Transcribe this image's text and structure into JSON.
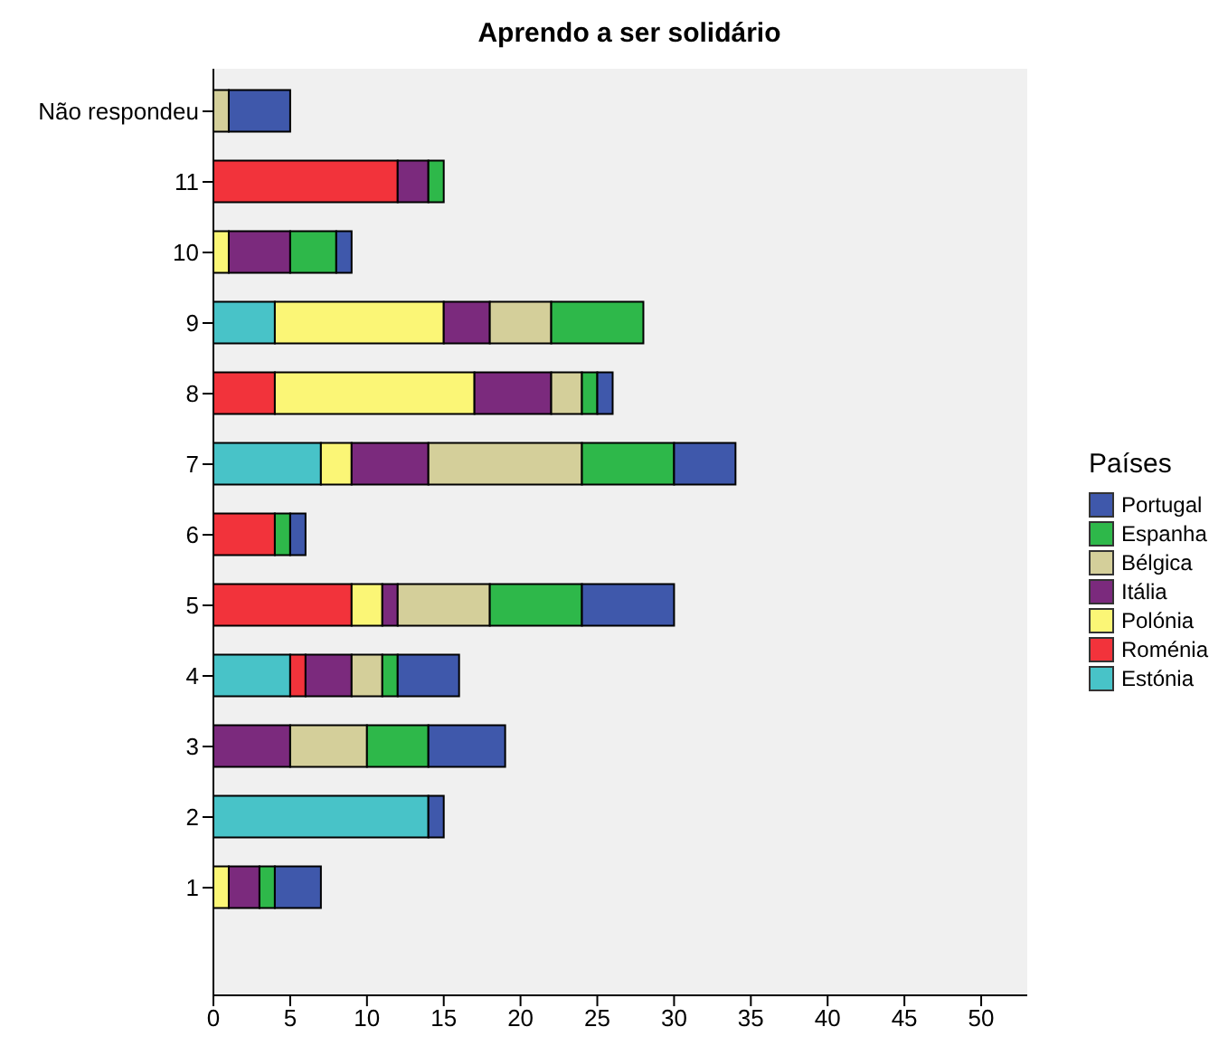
{
  "chart_data": {
    "type": "bar",
    "orientation": "horizontal",
    "stacked": true,
    "title": "Aprendo a ser solidário",
    "legend_title": "Países",
    "legend": "right",
    "grid": false,
    "categories": [
      "Não respondeu",
      "11",
      "10",
      "9",
      "8",
      "7",
      "6",
      "5",
      "4",
      "3",
      "2",
      "1"
    ],
    "xlim": [
      0,
      53
    ],
    "xticks": [
      0,
      5,
      10,
      15,
      20,
      25,
      30,
      35,
      40,
      45,
      50
    ],
    "series": [
      {
        "name": "Estónia",
        "color": "#48c3c8",
        "values": [
          0,
          0,
          0,
          4,
          0,
          7,
          0,
          0,
          5,
          0,
          14,
          0
        ]
      },
      {
        "name": "Roménia",
        "color": "#f2333b",
        "values": [
          0,
          12,
          0,
          0,
          4,
          0,
          4,
          9,
          1,
          0,
          0,
          0
        ]
      },
      {
        "name": "Polónia",
        "color": "#fbf676",
        "values": [
          0,
          0,
          1,
          11,
          13,
          2,
          0,
          2,
          0,
          0,
          0,
          1
        ]
      },
      {
        "name": "Itália",
        "color": "#7b2a7d",
        "values": [
          0,
          2,
          4,
          3,
          5,
          5,
          0,
          1,
          3,
          5,
          0,
          2
        ]
      },
      {
        "name": "Bélgica",
        "color": "#d4cf9a",
        "values": [
          1,
          0,
          0,
          4,
          2,
          10,
          0,
          6,
          2,
          5,
          0,
          0
        ]
      },
      {
        "name": "Espanha",
        "color": "#2eb84a",
        "values": [
          0,
          1,
          3,
          6,
          1,
          6,
          1,
          6,
          1,
          4,
          0,
          1
        ]
      },
      {
        "name": "Portugal",
        "color": "#3f58ab",
        "values": [
          4,
          0,
          1,
          0,
          1,
          4,
          1,
          6,
          4,
          5,
          1,
          3
        ]
      }
    ]
  }
}
